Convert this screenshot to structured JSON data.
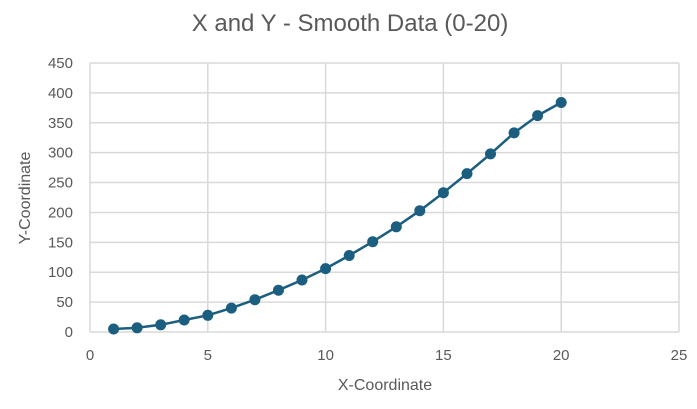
{
  "chart_data": {
    "type": "scatter",
    "title": "X and Y - Smooth Data (0-20)",
    "xlabel": "X-Coordinate",
    "ylabel": "Y-Coordinate",
    "xlim": [
      0,
      25
    ],
    "ylim": [
      0,
      450
    ],
    "xticks": [
      0,
      5,
      10,
      15,
      20,
      25
    ],
    "yticks": [
      0,
      50,
      100,
      150,
      200,
      250,
      300,
      350,
      400,
      450
    ],
    "grid": true,
    "legend": "none",
    "series": [
      {
        "color": "#1b5e80",
        "line": true,
        "x": [
          1,
          2,
          3,
          4,
          5,
          6,
          7,
          8,
          9,
          10,
          11,
          12,
          13,
          14,
          15,
          16,
          17,
          18,
          19,
          20
        ],
        "y": [
          5,
          7,
          12,
          20,
          28,
          40,
          54,
          70,
          87,
          106,
          128,
          151,
          176,
          203,
          233,
          265,
          298,
          333,
          362,
          384
        ]
      }
    ]
  }
}
